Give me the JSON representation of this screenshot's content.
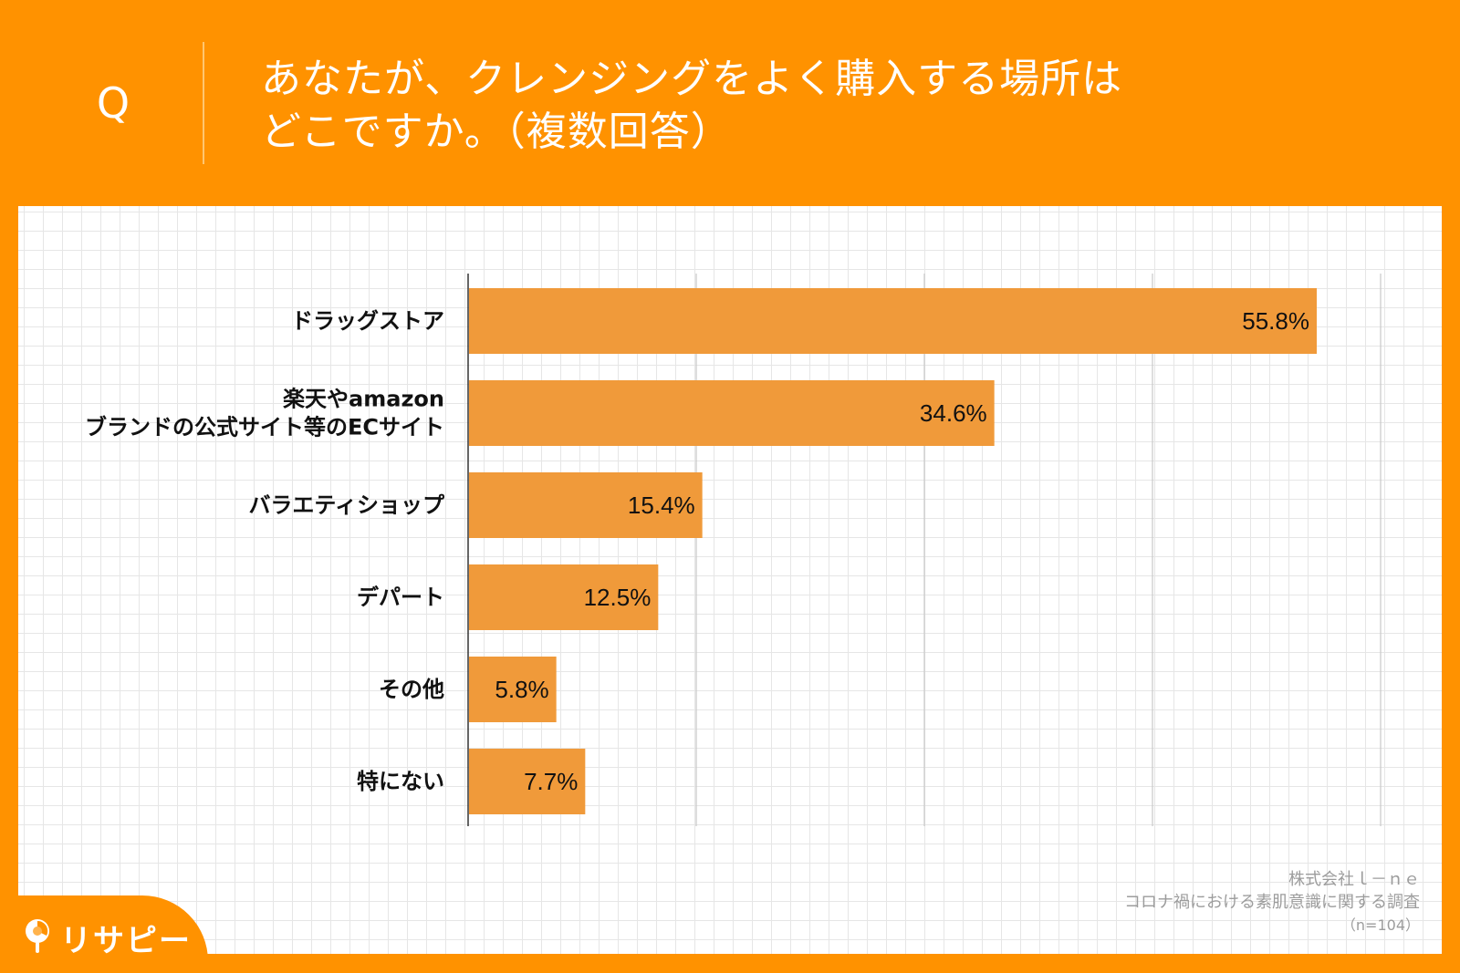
{
  "header": {
    "q_label": "Q",
    "question_lines": [
      "あなたが、クレンジングをよく購入する場所は",
      "どこですか。（複数回答）"
    ]
  },
  "chart_data": {
    "type": "bar",
    "orientation": "horizontal",
    "categories": [
      [
        "ドラッグストア"
      ],
      [
        "楽天やamazon",
        "ブランドの公式サイト等のECサイト"
      ],
      [
        "バラエティショップ"
      ],
      [
        "デパート"
      ],
      [
        "その他"
      ],
      [
        "特にない"
      ]
    ],
    "values": [
      55.8,
      34.6,
      15.4,
      12.5,
      5.8,
      7.7
    ],
    "value_labels": [
      "55.8%",
      "34.6%",
      "15.4%",
      "12.5%",
      "5.8%",
      "7.7%"
    ],
    "xlim": [
      0,
      60
    ],
    "gridline_step": 15,
    "grid": true,
    "bar_color": "#f09a3a"
  },
  "source": {
    "company": "株式会社ｌ－ｎｅ",
    "survey": "コロナ禍における素肌意識に関する調査",
    "sample": "（n=104）"
  },
  "logo": {
    "text": "リサピー"
  },
  "colors": {
    "orange": "#ff9200",
    "bar": "#f09a3a",
    "text": "#111111",
    "source": "#9c9c9c"
  }
}
